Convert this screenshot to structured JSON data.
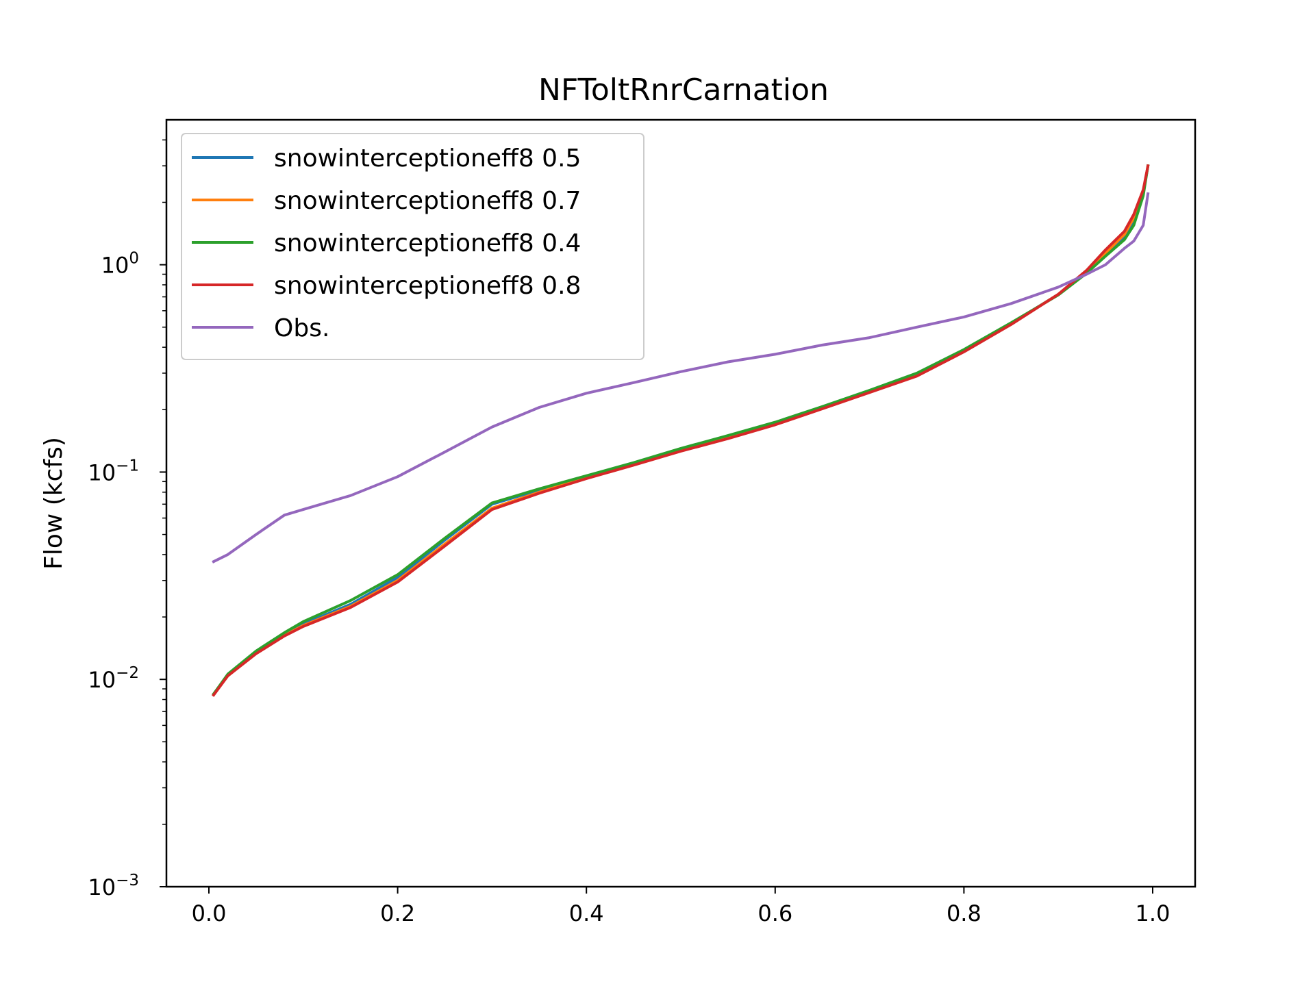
{
  "chart_data": {
    "type": "line",
    "title": "NFToltRnrCarnation",
    "xlabel": "",
    "ylabel": "Flow (kcfs)",
    "xlim": [
      -0.045,
      1.045
    ],
    "ylim": [
      0.001,
      5
    ],
    "yscale": "log",
    "grid": false,
    "legend_position": "top-left",
    "x_ticks": [
      0.0,
      0.2,
      0.4,
      0.6,
      0.8,
      1.0
    ],
    "x_tick_labels": [
      "0.0",
      "0.2",
      "0.4",
      "0.6",
      "0.8",
      "1.0"
    ],
    "y_ticks": [
      0.001,
      0.01,
      0.1,
      1
    ],
    "y_tick_base": "10",
    "y_tick_exponents": [
      "−3",
      "−2",
      "−1",
      "0"
    ],
    "x": [
      0.005,
      0.02,
      0.05,
      0.08,
      0.1,
      0.15,
      0.2,
      0.25,
      0.3,
      0.35,
      0.4,
      0.45,
      0.5,
      0.55,
      0.6,
      0.65,
      0.7,
      0.75,
      0.8,
      0.85,
      0.9,
      0.93,
      0.95,
      0.97,
      0.98,
      0.99,
      0.995
    ],
    "series": [
      {
        "name": "snowinterceptioneff8 0.5",
        "color": "#1f77b4",
        "values": [
          0.0085,
          0.0105,
          0.0135,
          0.0165,
          0.0185,
          0.023,
          0.031,
          0.047,
          0.07,
          0.082,
          0.095,
          0.11,
          0.128,
          0.148,
          0.172,
          0.205,
          0.245,
          0.295,
          0.385,
          0.52,
          0.72,
          0.92,
          1.12,
          1.35,
          1.6,
          2.2,
          3.0
        ]
      },
      {
        "name": "snowinterceptioneff8 0.7",
        "color": "#ff7f0e",
        "values": [
          0.0085,
          0.0104,
          0.0134,
          0.0163,
          0.0182,
          0.0225,
          0.03,
          0.045,
          0.067,
          0.08,
          0.094,
          0.109,
          0.127,
          0.146,
          0.17,
          0.203,
          0.243,
          0.293,
          0.383,
          0.518,
          0.72,
          0.93,
          1.14,
          1.4,
          1.68,
          2.25,
          3.0
        ]
      },
      {
        "name": "snowinterceptioneff8 0.4",
        "color": "#2ca02c",
        "values": [
          0.0085,
          0.0106,
          0.0137,
          0.0168,
          0.019,
          0.024,
          0.032,
          0.048,
          0.071,
          0.083,
          0.096,
          0.111,
          0.13,
          0.15,
          0.174,
          0.207,
          0.248,
          0.3,
          0.39,
          0.525,
          0.715,
          0.91,
          1.1,
          1.32,
          1.55,
          2.15,
          3.0
        ]
      },
      {
        "name": "snowinterceptioneff8 0.8",
        "color": "#d62728",
        "values": [
          0.0084,
          0.0104,
          0.0133,
          0.0162,
          0.018,
          0.0222,
          0.0295,
          0.044,
          0.066,
          0.079,
          0.093,
          0.108,
          0.126,
          0.145,
          0.169,
          0.202,
          0.242,
          0.29,
          0.38,
          0.515,
          0.72,
          0.94,
          1.18,
          1.45,
          1.75,
          2.3,
          3.0
        ]
      },
      {
        "name": "Obs.",
        "color": "#9467bd",
        "values": [
          0.037,
          0.04,
          0.05,
          0.062,
          0.066,
          0.077,
          0.095,
          0.125,
          0.165,
          0.205,
          0.24,
          0.27,
          0.305,
          0.34,
          0.37,
          0.41,
          0.445,
          0.5,
          0.56,
          0.65,
          0.78,
          0.9,
          1.0,
          1.2,
          1.3,
          1.55,
          2.2
        ]
      }
    ]
  }
}
